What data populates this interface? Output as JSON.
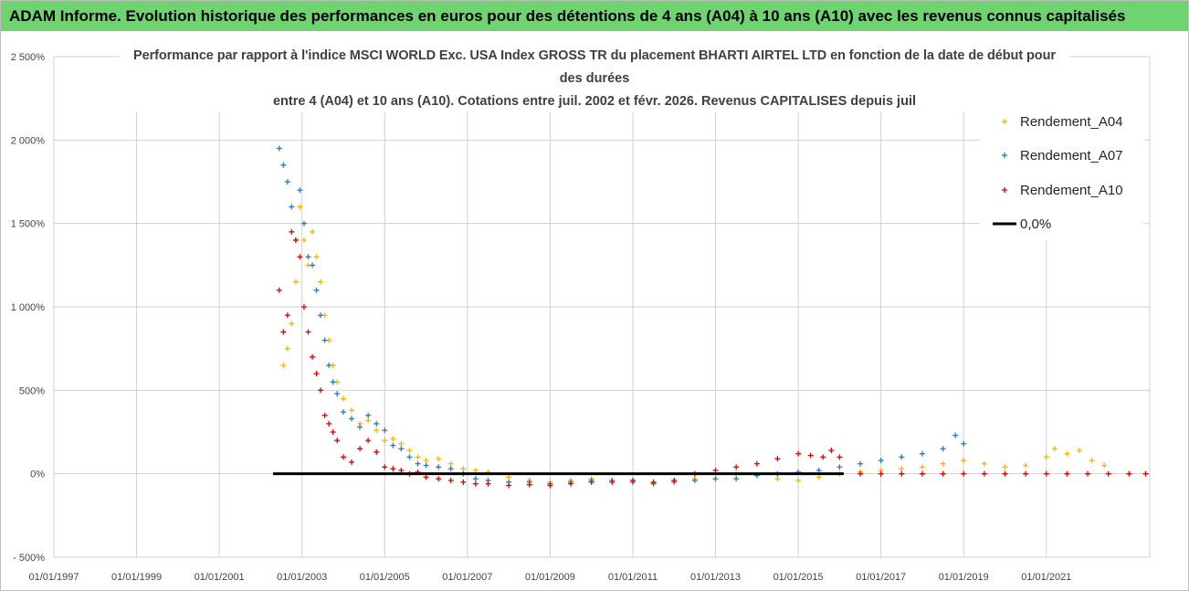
{
  "banner": {
    "title": "ADAM Informe. Evolution historique des performances en euros pour des détentions de 4 ans (A04) à 10 ans (A10) avec les revenus connus capitalisés"
  },
  "chart_data": {
    "type": "scatter",
    "title_lines": [
      "Performance par rapport à l'indice MSCI WORLD Exc. USA Index GROSS TR  du placement BHARTI AIRTEL LTD en fonction de la date de début pour",
      "des durées",
      "entre 4 (A04) et 10 ans (A10). Cotations entre juil. 2002 et févr. 2026. Revenus CAPITALISES depuis juil"
    ],
    "xlabel": "",
    "ylabel": "",
    "x_range": [
      1997.0,
      2023.5
    ],
    "ylim": [
      -500,
      2500
    ],
    "y_ticks": [
      {
        "value": -500,
        "label": "- 500%"
      },
      {
        "value": 0,
        "label": "0%"
      },
      {
        "value": 500,
        "label": "500%"
      },
      {
        "value": 1000,
        "label": "1 000%"
      },
      {
        "value": 1500,
        "label": "1 500%"
      },
      {
        "value": 2000,
        "label": "2 000%"
      },
      {
        "value": 2500,
        "label": "2 500%"
      }
    ],
    "x_ticks": [
      {
        "value": 1997,
        "label": "01/01/1997"
      },
      {
        "value": 1999,
        "label": "01/01/1999"
      },
      {
        "value": 2001,
        "label": "01/01/2001"
      },
      {
        "value": 2003,
        "label": "01/01/2003"
      },
      {
        "value": 2005,
        "label": "01/01/2005"
      },
      {
        "value": 2007,
        "label": "01/01/2007"
      },
      {
        "value": 2009,
        "label": "01/01/2009"
      },
      {
        "value": 2011,
        "label": "01/01/2011"
      },
      {
        "value": 2013,
        "label": "01/01/2013"
      },
      {
        "value": 2015,
        "label": "01/01/2015"
      },
      {
        "value": 2017,
        "label": "01/01/2017"
      },
      {
        "value": 2019,
        "label": "01/01/2019"
      },
      {
        "value": 2021,
        "label": "01/01/2021"
      }
    ],
    "grid": true,
    "legend_position": "top-right",
    "series": [
      {
        "name": "Rendement_A04",
        "color": "#f2b800",
        "x": [
          2002.55,
          2002.65,
          2002.75,
          2002.85,
          2002.95,
          2003.05,
          2003.15,
          2003.25,
          2003.35,
          2003.45,
          2003.55,
          2003.65,
          2003.75,
          2003.85,
          2004.0,
          2004.2,
          2004.4,
          2004.6,
          2004.8,
          2005.0,
          2005.2,
          2005.4,
          2005.6,
          2005.8,
          2006.0,
          2006.3,
          2006.6,
          2006.9,
          2007.2,
          2007.5,
          2008.0,
          2008.5,
          2009.0,
          2009.5,
          2010.0,
          2010.5,
          2011.0,
          2011.5,
          2012.0,
          2012.5,
          2013.0,
          2013.5,
          2014.0,
          2014.5,
          2015.0,
          2015.5,
          2016.0,
          2016.5,
          2017.0,
          2017.5,
          2018.0,
          2018.5,
          2019.0,
          2019.5,
          2020.0,
          2020.5,
          2021.0,
          2021.2,
          2021.5,
          2021.8,
          2022.1,
          2022.4
        ],
        "values": [
          650,
          750,
          900,
          1150,
          1600,
          1400,
          1250,
          1450,
          1300,
          1150,
          950,
          800,
          650,
          550,
          450,
          380,
          300,
          320,
          260,
          200,
          210,
          180,
          140,
          100,
          80,
          90,
          60,
          30,
          20,
          10,
          -20,
          -40,
          -50,
          -40,
          -30,
          -40,
          -50,
          -55,
          -40,
          -30,
          -30,
          0,
          -10,
          -30,
          -40,
          -20,
          0,
          10,
          20,
          30,
          40,
          60,
          80,
          60,
          40,
          50,
          100,
          150,
          120,
          140,
          80,
          50
        ]
      },
      {
        "name": "Rendement_A07",
        "color": "#2a7ab8",
        "x": [
          2002.45,
          2002.55,
          2002.65,
          2002.75,
          2002.85,
          2002.95,
          2003.05,
          2003.15,
          2003.25,
          2003.35,
          2003.45,
          2003.55,
          2003.65,
          2003.75,
          2003.85,
          2004.0,
          2004.2,
          2004.4,
          2004.6,
          2004.8,
          2005.0,
          2005.2,
          2005.4,
          2005.6,
          2005.8,
          2006.0,
          2006.3,
          2006.6,
          2006.9,
          2007.2,
          2007.5,
          2008.0,
          2008.5,
          2009.0,
          2009.5,
          2010.0,
          2010.5,
          2011.0,
          2011.5,
          2012.0,
          2012.5,
          2013.0,
          2013.5,
          2014.0,
          2014.5,
          2015.0,
          2015.5,
          2016.0,
          2016.5,
          2017.0,
          2017.5,
          2018.0,
          2018.5,
          2018.8,
          2019.0
        ],
        "values": [
          1950,
          1850,
          1750,
          1600,
          1400,
          1700,
          1500,
          1300,
          1250,
          1100,
          950,
          800,
          650,
          550,
          480,
          370,
          330,
          280,
          350,
          300,
          260,
          170,
          150,
          100,
          60,
          50,
          40,
          30,
          0,
          -30,
          -40,
          -50,
          -50,
          -60,
          -50,
          -40,
          -40,
          -50,
          -60,
          -50,
          -40,
          -30,
          -30,
          -10,
          0,
          10,
          20,
          40,
          60,
          80,
          100,
          120,
          150,
          230,
          180
        ]
      },
      {
        "name": "Rendement_A10",
        "color": "#e00000",
        "x": [
          2002.45,
          2002.55,
          2002.65,
          2002.75,
          2002.85,
          2002.95,
          2003.05,
          2003.15,
          2003.25,
          2003.35,
          2003.45,
          2003.55,
          2003.65,
          2003.75,
          2003.85,
          2004.0,
          2004.2,
          2004.4,
          2004.6,
          2004.8,
          2005.0,
          2005.2,
          2005.4,
          2005.6,
          2005.8,
          2006.0,
          2006.3,
          2006.6,
          2006.9,
          2007.2,
          2007.5,
          2008.0,
          2008.5,
          2009.0,
          2009.5,
          2010.0,
          2010.5,
          2011.0,
          2011.5,
          2012.0,
          2012.5,
          2013.0,
          2013.5,
          2014.0,
          2014.5,
          2015.0,
          2015.3,
          2015.6,
          2015.8,
          2016.0,
          2016.5,
          2017.0,
          2017.5,
          2018.0,
          2018.5,
          2019.0,
          2019.5,
          2020.0,
          2020.5,
          2021.0,
          2021.5,
          2022.0,
          2022.5,
          2023.0,
          2023.4
        ],
        "values": [
          1100,
          850,
          950,
          1450,
          1400,
          1300,
          1000,
          850,
          700,
          600,
          500,
          350,
          300,
          250,
          200,
          100,
          70,
          150,
          200,
          130,
          40,
          30,
          20,
          0,
          10,
          -20,
          -30,
          -40,
          -50,
          -60,
          -60,
          -70,
          -65,
          -70,
          -60,
          -50,
          -50,
          -40,
          -50,
          -40,
          0,
          20,
          40,
          60,
          90,
          120,
          110,
          100,
          140,
          100,
          0,
          0,
          0,
          0,
          0,
          0,
          0,
          0,
          0,
          0,
          0,
          0,
          0,
          0,
          0
        ]
      },
      {
        "name": "0,0%",
        "color": "#000000",
        "x": [
          2002.3,
          2016.1
        ],
        "values": [
          0,
          0
        ]
      }
    ]
  }
}
